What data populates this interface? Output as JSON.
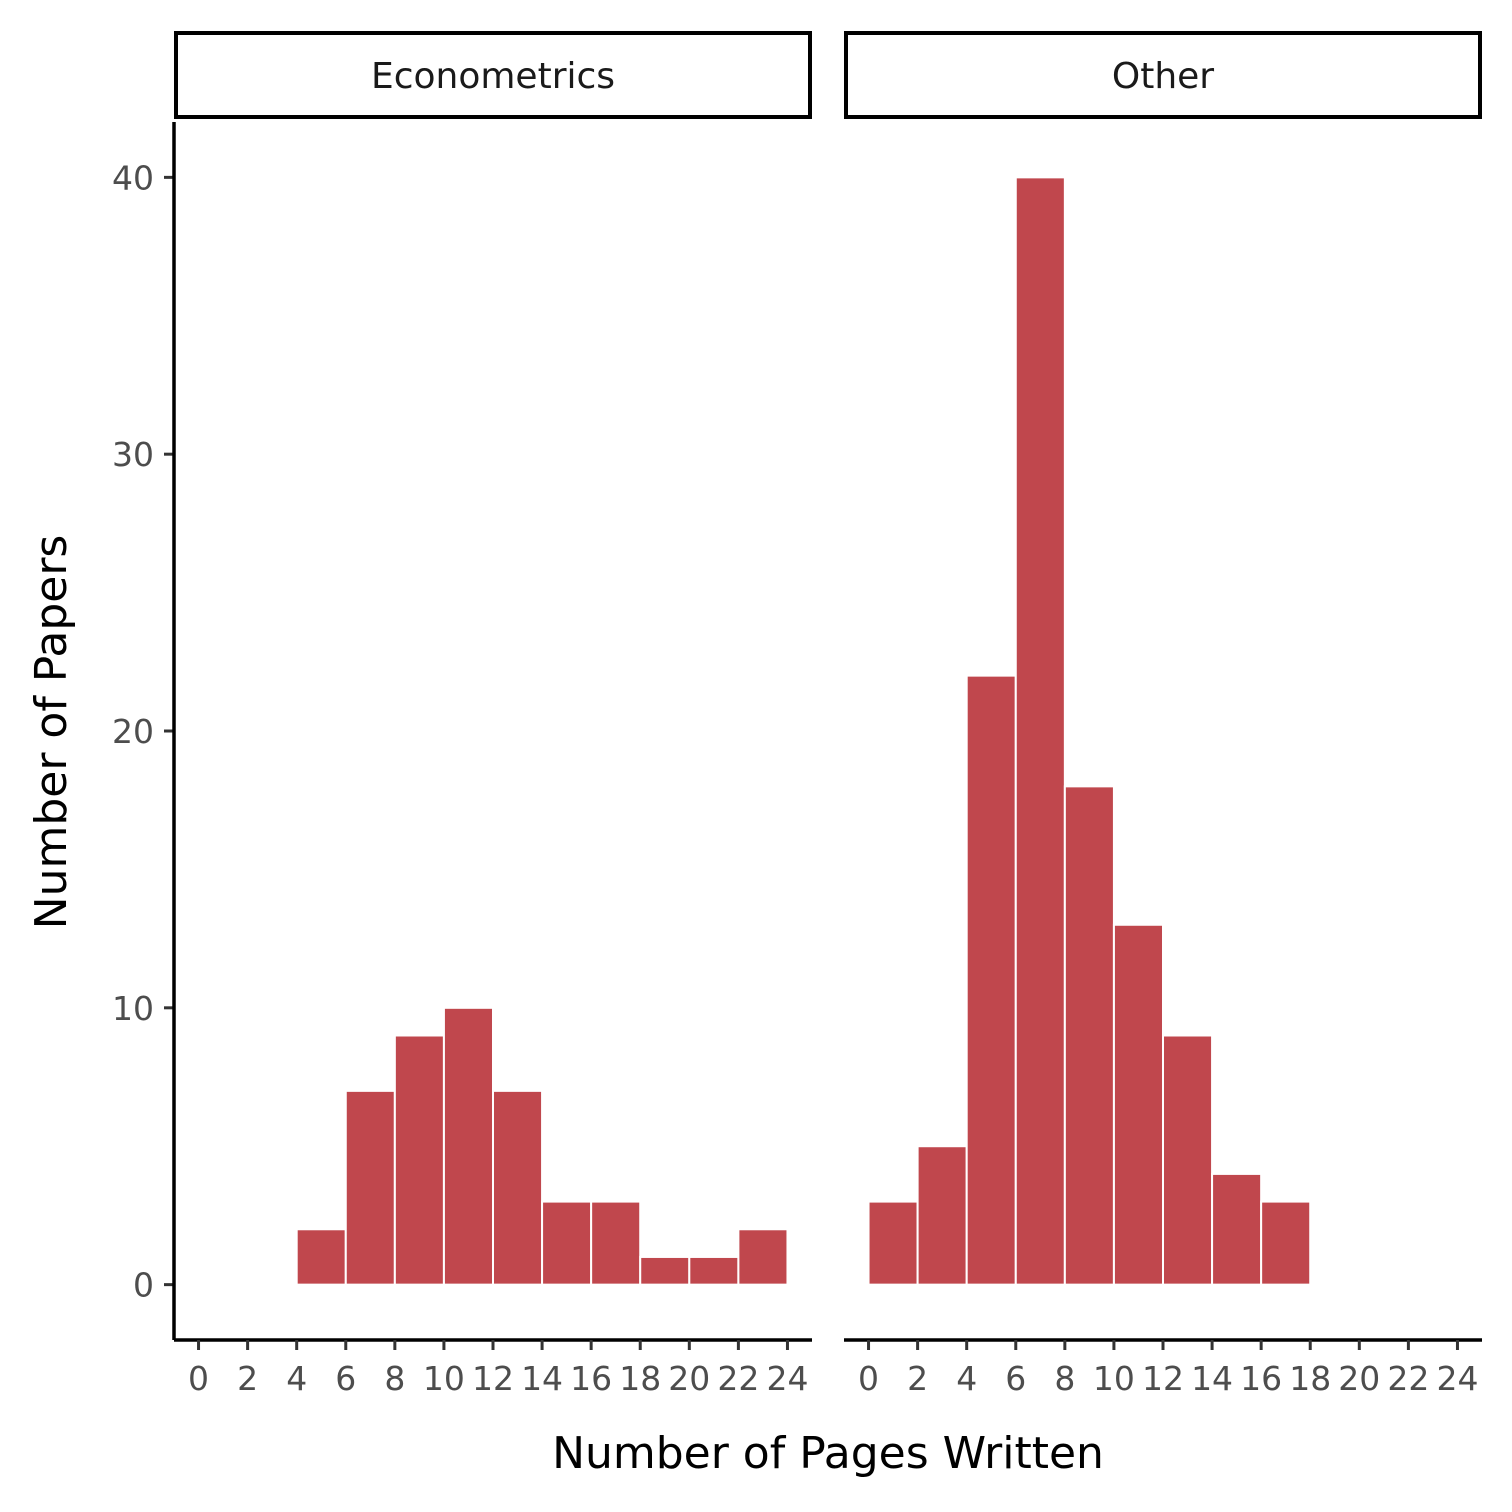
{
  "chart_data": {
    "type": "bar",
    "subtype": "faceted-histogram",
    "xlabel": "Number of Pages Written",
    "ylabel": "Number of Papers",
    "bin_width": 2,
    "xlim": [
      -1,
      25
    ],
    "ylim": [
      -2,
      42
    ],
    "x_ticks": [
      "0",
      "2",
      "4",
      "6",
      "8",
      "10",
      "12",
      "14",
      "16",
      "18",
      "20",
      "22",
      "24"
    ],
    "y_ticks": [
      "0",
      "10",
      "20",
      "30",
      "40"
    ],
    "bar_color": "#c0474d",
    "panels": [
      {
        "name": "Econometrics",
        "bins": [
          {
            "x0": 4,
            "x1": 6,
            "count": 2
          },
          {
            "x0": 6,
            "x1": 8,
            "count": 7
          },
          {
            "x0": 8,
            "x1": 10,
            "count": 9
          },
          {
            "x0": 10,
            "x1": 12,
            "count": 10
          },
          {
            "x0": 12,
            "x1": 14,
            "count": 7
          },
          {
            "x0": 14,
            "x1": 16,
            "count": 3
          },
          {
            "x0": 16,
            "x1": 18,
            "count": 3
          },
          {
            "x0": 18,
            "x1": 20,
            "count": 1
          },
          {
            "x0": 20,
            "x1": 22,
            "count": 1
          },
          {
            "x0": 22,
            "x1": 24,
            "count": 2
          }
        ]
      },
      {
        "name": "Other",
        "bins": [
          {
            "x0": 0,
            "x1": 2,
            "count": 3
          },
          {
            "x0": 2,
            "x1": 4,
            "count": 5
          },
          {
            "x0": 4,
            "x1": 6,
            "count": 22
          },
          {
            "x0": 6,
            "x1": 8,
            "count": 40
          },
          {
            "x0": 8,
            "x1": 10,
            "count": 18
          },
          {
            "x0": 10,
            "x1": 12,
            "count": 13
          },
          {
            "x0": 12,
            "x1": 14,
            "count": 9
          },
          {
            "x0": 14,
            "x1": 16,
            "count": 4
          },
          {
            "x0": 16,
            "x1": 18,
            "count": 3
          }
        ]
      }
    ]
  }
}
